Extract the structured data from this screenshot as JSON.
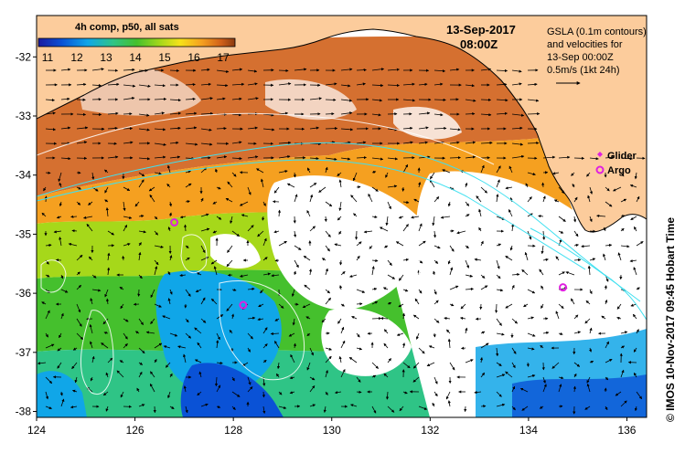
{
  "colorbar": {
    "title": "4h comp, p50, all sats",
    "ticks": [
      "11",
      "12",
      "13",
      "14",
      "15",
      "16",
      "17"
    ],
    "colors": [
      "#1a1aa0",
      "#0a52d6",
      "#10a6e8",
      "#2fc486",
      "#45c02d",
      "#a6d81a",
      "#f6e21a",
      "#f5a020",
      "#d0601a",
      "#8a3a10"
    ]
  },
  "date": {
    "day": "13-Sep-2017",
    "time": "08:00Z"
  },
  "gsla_note": {
    "line1": "GSLA (0.1m contours)",
    "line2": "and velocities for",
    "line3": "13-Sep 00:00Z",
    "line4": "0.5m/s (1kt 24h)"
  },
  "legend": {
    "glider": "Glider",
    "argo": "Argo",
    "glider_color": "#e020e0",
    "argo_color": "#e020e0"
  },
  "credit": "© IMOS 10-Nov-2017 09:45 Hobart Time",
  "axes": {
    "x_ticks": [
      "124",
      "126",
      "128",
      "130",
      "132",
      "134",
      "136"
    ],
    "y_ticks": [
      "-32",
      "-33",
      "-34",
      "-35",
      "-36",
      "-37",
      "-38"
    ],
    "x_range": [
      124,
      136.4
    ],
    "y_range": [
      -38.1,
      -31.3
    ]
  },
  "land_color": "#fccc9c",
  "argo_floats": [
    {
      "lon": 126.8,
      "lat": -34.8
    },
    {
      "lon": 128.2,
      "lat": -36.2
    },
    {
      "lon": 134.7,
      "lat": -35.9
    }
  ]
}
